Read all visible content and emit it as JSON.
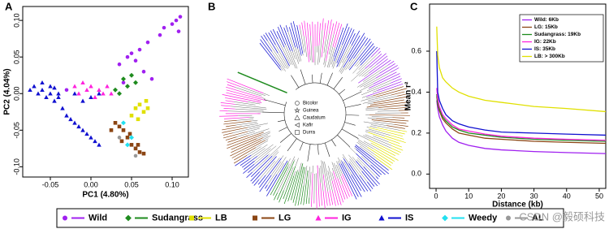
{
  "chart_data": [
    {
      "type": "scatter",
      "label": "A",
      "xlabel": "PC1 (4.80%)",
      "ylabel": "PC2 (4.04%)",
      "xlim": [
        -0.084,
        0.12
      ],
      "ylim": [
        -0.114,
        0.119
      ],
      "xticks": [
        {
          "value": -0.05,
          "label": "-0.05"
        },
        {
          "value": 0,
          "label": "0.00"
        },
        {
          "value": 0.05,
          "label": "0.05"
        },
        {
          "value": 0.1,
          "label": "0.10"
        }
      ],
      "yticks": [
        {
          "value": -0.1,
          "label": "-0.10"
        },
        {
          "value": -0.05,
          "label": "-0.05"
        },
        {
          "value": 0,
          "label": "0.00"
        },
        {
          "value": 0.05,
          "label": "0.05"
        },
        {
          "value": 0.1,
          "label": "0.10"
        }
      ],
      "series": [
        {
          "name": "Wild",
          "color": "#a020f0",
          "marker": "circle",
          "x": [
            0.11,
            0.105,
            0.1,
            0.09,
            0.108,
            0.085,
            0.07,
            0.06,
            0.05,
            0.045,
            0.055,
            0.035,
            0.065,
            0.04,
            0.075,
            -0.03
          ],
          "y": [
            0.105,
            0.1,
            0.095,
            0.09,
            0.085,
            0.08,
            0.07,
            0.06,
            0.055,
            0.05,
            0.045,
            0.04,
            0.03,
            0.015,
            0.02,
            0.005
          ]
        },
        {
          "name": "Sudangrass",
          "color": "#1e8b1e",
          "marker": "diamond",
          "x": [
            0.04,
            0.045,
            0.05,
            0.035,
            0.055,
            0.03
          ],
          "y": [
            0.02,
            0.01,
            0.025,
            0,
            0.015,
            0.005
          ]
        },
        {
          "name": "LB",
          "color": "#e0e000",
          "marker": "square",
          "x": [
            0.055,
            0.06,
            0.065,
            0.07,
            0.05,
            0.058,
            0.068
          ],
          "y": [
            -0.02,
            -0.015,
            -0.025,
            -0.02,
            -0.03,
            -0.035,
            -0.01
          ]
        },
        {
          "name": "LG",
          "color": "#8b4513",
          "marker": "square",
          "x": [
            0.03,
            0.035,
            0.04,
            0.045,
            0.05,
            0.055,
            0.06,
            0.065,
            0.038,
            0.048,
            0.025,
            0.058
          ],
          "y": [
            -0.04,
            -0.045,
            -0.05,
            -0.06,
            -0.07,
            -0.075,
            -0.08,
            -0.082,
            -0.065,
            -0.055,
            -0.05,
            -0.07
          ]
        },
        {
          "name": "IG",
          "color": "#ff22dd",
          "marker": "triangle",
          "x": [
            -0.02,
            -0.01,
            0,
            0.01,
            0.015,
            -0.005,
            0.02,
            0.005,
            -0.015,
            0.025
          ],
          "y": [
            0.01,
            0.015,
            0.01,
            0.005,
            0,
            0.005,
            0.01,
            -0.005,
            0,
            0
          ]
        },
        {
          "name": "IS",
          "color": "#1010d0",
          "marker": "triangle",
          "x": [
            -0.07,
            -0.065,
            -0.06,
            -0.055,
            -0.05,
            -0.045,
            -0.04,
            -0.035,
            -0.03,
            -0.025,
            -0.02,
            -0.015,
            -0.01,
            -0.005,
            0,
            0.005,
            0.01,
            -0.06,
            -0.05,
            -0.04,
            -0.02,
            -0.01,
            0,
            0.01,
            -0.075,
            -0.045
          ],
          "y": [
            0.01,
            0,
            0.005,
            -0.005,
            0,
            -0.01,
            -0.005,
            -0.02,
            -0.03,
            -0.035,
            -0.04,
            -0.045,
            -0.05,
            -0.055,
            -0.06,
            -0.065,
            -0.07,
            0.015,
            0.01,
            0,
            0,
            -0.01,
            -0.005,
            0,
            0.005,
            0.008
          ]
        },
        {
          "name": "Weedy",
          "color": "#22e0f0",
          "marker": "diamond",
          "x": [
            0.04,
            0.05,
            0.045
          ],
          "y": [
            -0.04,
            -0.06,
            -0.07
          ]
        },
        {
          "name": "AL",
          "color": "#999999",
          "marker": "circle",
          "x": [
            0.035,
            0.055
          ],
          "y": [
            -0.06,
            -0.085
          ]
        }
      ]
    },
    {
      "type": "tree",
      "label": "B",
      "tree_legend": [
        {
          "label": "Bicolor",
          "marker": "circle"
        },
        {
          "label": "Guinea",
          "marker": "star"
        },
        {
          "label": "Caudatum",
          "marker": "triangle"
        },
        {
          "label": "Kafir",
          "marker": "left"
        },
        {
          "label": "Durra",
          "marker": "square"
        }
      ]
    },
    {
      "type": "line",
      "label": "C",
      "xlabel": "Distance (kb)",
      "ylabel": "Mean r²",
      "xlim": [
        -2,
        52
      ],
      "ylim": [
        -0.07,
        0.83
      ],
      "xticks": [
        0,
        10,
        20,
        30,
        40,
        50
      ],
      "yticks": [
        {
          "value": 0,
          "label": "0.0"
        },
        {
          "value": 0.2,
          "label": "0.2"
        },
        {
          "value": 0.4,
          "label": "0.4"
        },
        {
          "value": 0.6,
          "label": "0.6"
        }
      ],
      "x": [
        0.2,
        0.5,
        1,
        2,
        3,
        5,
        7,
        10,
        15,
        20,
        30,
        40,
        52
      ],
      "series": [
        {
          "name": "Wild: 6Kb",
          "color": "#a020f0",
          "values": [
            0.36,
            0.32,
            0.28,
            0.24,
            0.21,
            0.175,
            0.155,
            0.14,
            0.125,
            0.118,
            0.11,
            0.105,
            0.1
          ]
        },
        {
          "name": "LG: 15Kb",
          "color": "#8b4513",
          "values": [
            0.38,
            0.34,
            0.31,
            0.27,
            0.25,
            0.22,
            0.2,
            0.19,
            0.175,
            0.17,
            0.16,
            0.155,
            0.15
          ]
        },
        {
          "name": "Sudangrass: 19Kb",
          "color": "#1e8b1e",
          "values": [
            0.39,
            0.35,
            0.32,
            0.28,
            0.26,
            0.23,
            0.215,
            0.2,
            0.19,
            0.18,
            0.17,
            0.165,
            0.16
          ]
        },
        {
          "name": "IG: 22Kb",
          "color": "#ff22dd",
          "values": [
            0.42,
            0.37,
            0.33,
            0.29,
            0.27,
            0.24,
            0.22,
            0.21,
            0.195,
            0.185,
            0.175,
            0.17,
            0.165
          ]
        },
        {
          "name": "IS: 35Kb",
          "color": "#1010d0",
          "values": [
            0.6,
            0.4,
            0.36,
            0.32,
            0.29,
            0.26,
            0.245,
            0.23,
            0.215,
            0.205,
            0.2,
            0.195,
            0.19
          ]
        },
        {
          "name": "LB: > 300Kb",
          "color": "#e0e000",
          "values": [
            0.72,
            0.58,
            0.52,
            0.47,
            0.45,
            0.42,
            0.4,
            0.38,
            0.36,
            0.35,
            0.33,
            0.32,
            0.305
          ]
        }
      ]
    }
  ],
  "watermark": "CSDN @毅硕科技"
}
